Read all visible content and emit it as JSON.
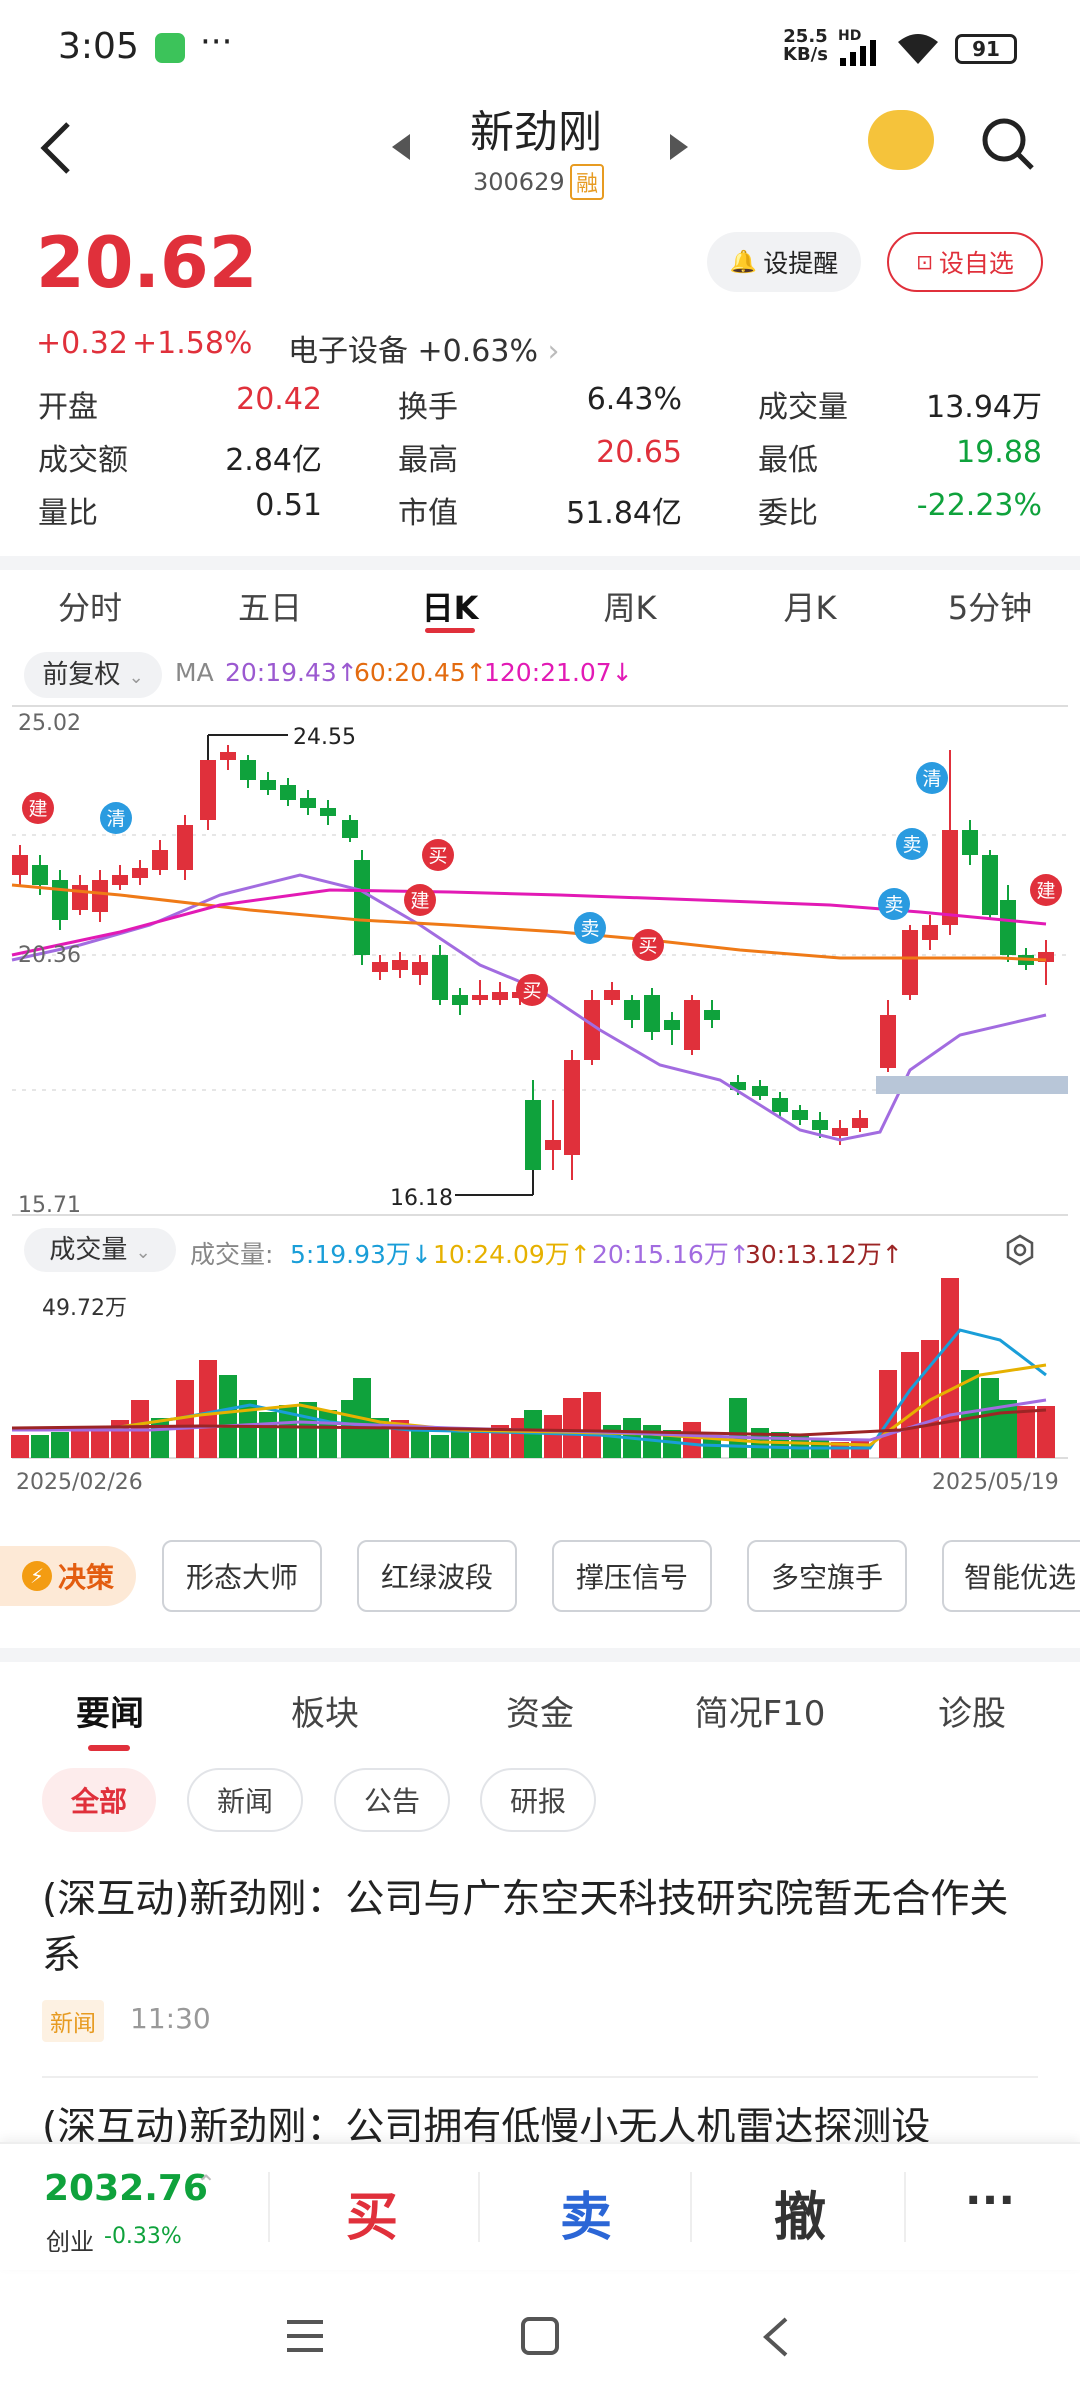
{
  "status": {
    "time": "3:05",
    "speed": "25.5",
    "speed_unit": "KB/s",
    "hd": "HD",
    "battery": "91"
  },
  "header": {
    "name": "新劲刚",
    "code": "300629",
    "margin_badge": "融"
  },
  "quote": {
    "price": "20.62",
    "change": "+0.32",
    "change_pct": "+1.58%",
    "sector": "电子设备",
    "sector_pct": "+0.63%",
    "alert_label": "设提醒",
    "watch_label": "设自选",
    "stats": [
      {
        "label": "开盘",
        "value": "20.42",
        "color": "red"
      },
      {
        "label": "换手",
        "value": "6.43%",
        "color": "black"
      },
      {
        "label": "成交量",
        "value": "13.94万",
        "color": "black"
      },
      {
        "label": "成交额",
        "value": "2.84亿",
        "color": "black"
      },
      {
        "label": "最高",
        "value": "20.65",
        "color": "red"
      },
      {
        "label": "最低",
        "value": "19.88",
        "color": "green"
      },
      {
        "label": "量比",
        "value": "0.51",
        "color": "black"
      },
      {
        "label": "市值",
        "value": "51.84亿",
        "color": "black"
      },
      {
        "label": "委比",
        "value": "-22.23%",
        "color": "green"
      }
    ]
  },
  "ktabs": [
    "分时",
    "五日",
    "日K",
    "周K",
    "月K",
    "5分钟"
  ],
  "ktab_active": 2,
  "ma": {
    "adjust": "前复权",
    "prefix": "MA",
    "ma20": "20:19.43↑",
    "ma60": "60:20.45↑",
    "ma120": "120:21.07↓"
  },
  "chart_data": {
    "type": "candlestick",
    "ylim": [
      15.71,
      25.02
    ],
    "y_top_label": "25.02",
    "y_mid_label": "20.36",
    "y_bottom_label": "15.71",
    "high_label": "24.55",
    "low_label": "16.18",
    "markers": [
      "建",
      "清",
      "买",
      "建",
      "买",
      "卖",
      "买",
      "清",
      "卖",
      "卖",
      "建"
    ],
    "volume": {
      "label": "成交量",
      "title": "成交量:",
      "v5": "5:19.93万↓",
      "v10": "10:24.09万↑",
      "v20": "20:15.16万↑",
      "v30": "30:13.12万↑",
      "max": "49.72万"
    },
    "x_start": "2025/02/26",
    "x_end": "2025/05/19"
  },
  "tools": {
    "decision": "决策",
    "items": [
      "形态大师",
      "红绿波段",
      "撑压信号",
      "多空旗手",
      "智能优选"
    ]
  },
  "news_tabs": [
    "要闻",
    "板块",
    "资金",
    "简况F10",
    "诊股"
  ],
  "news_chips": [
    "全部",
    "新闻",
    "公告",
    "研报"
  ],
  "news": [
    {
      "title": "(深互动)新劲刚：公司与广东空天科技研究院暂无合作关系",
      "tag": "新闻",
      "time": "11:30"
    },
    {
      "title": "(深互动)新劲刚：公司拥有低慢小无人机雷达探测设"
    }
  ],
  "bottom": {
    "index_value": "2032.76",
    "index_name": "创业",
    "index_pct": "-0.33%",
    "buy": "买",
    "sell": "卖",
    "cancel": "撤",
    "more": "···"
  }
}
